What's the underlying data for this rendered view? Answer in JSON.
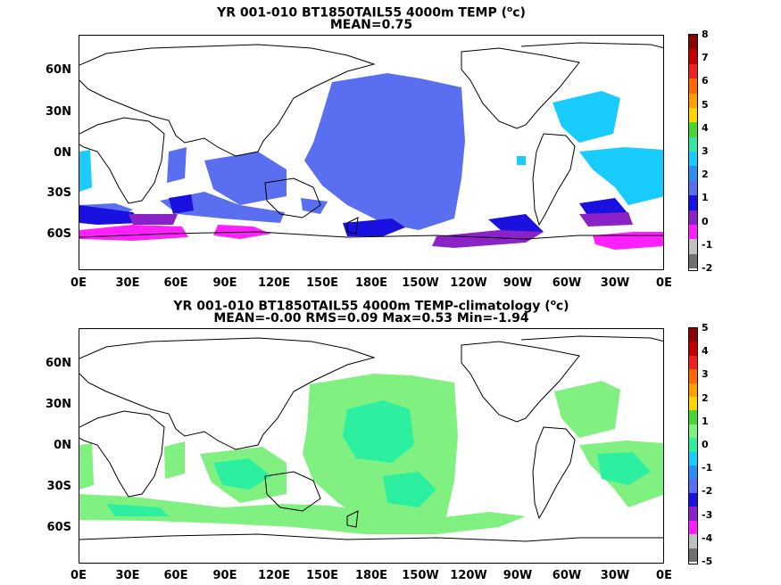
{
  "panels": [
    {
      "title": "YR 001-010 BT1850TAIL55 4000m TEMP (",
      "title_sup": "o",
      "title_end": "c)",
      "subtitle": "MEAN=0.75",
      "colorbar_labels": [
        "8",
        "7",
        "6",
        "5",
        "4",
        "3",
        "2",
        "1",
        "0",
        "-1",
        "-2"
      ],
      "colorbar_colors": [
        "#8b0000",
        "#c00000",
        "#ee2020",
        "#ff6a00",
        "#ff9f00",
        "#ffd700",
        "#48d730",
        "#36e6a6",
        "#18ccff",
        "#2f8ff0",
        "#5a6ff0",
        "#1a10e0",
        "#8a22c8",
        "#ff20ff",
        "#c0c0c0",
        "#707070"
      ]
    },
    {
      "title": "YR 001-010 BT1850TAIL55 4000m TEMP-climatology (",
      "title_sup": "o",
      "title_end": "c)",
      "subtitle": "MEAN=-0.00   RMS=0.09   Max=0.53   Min=-1.94",
      "colorbar_labels": [
        "5",
        "4",
        "3",
        "2",
        "1",
        "0",
        "-1",
        "-2",
        "-3",
        "-4",
        "-5"
      ],
      "colorbar_colors": [
        "#8b0000",
        "#c00000",
        "#ee2020",
        "#ff6a00",
        "#ff9f00",
        "#ffd700",
        "#48d730",
        "#80f080",
        "#2cf0a0",
        "#18ccff",
        "#2f8ff0",
        "#5a6ff0",
        "#1a10e0",
        "#8a22c8",
        "#ff20ff",
        "#c0c0c0",
        "#707070"
      ]
    }
  ],
  "lat_labels": [
    "60N",
    "30N",
    "0N",
    "30S",
    "60S"
  ],
  "lon_labels": [
    "0E",
    "30E",
    "60E",
    "90E",
    "120E",
    "150E",
    "180E",
    "150W",
    "120W",
    "90W",
    "60W",
    "30W",
    "0E"
  ]
}
